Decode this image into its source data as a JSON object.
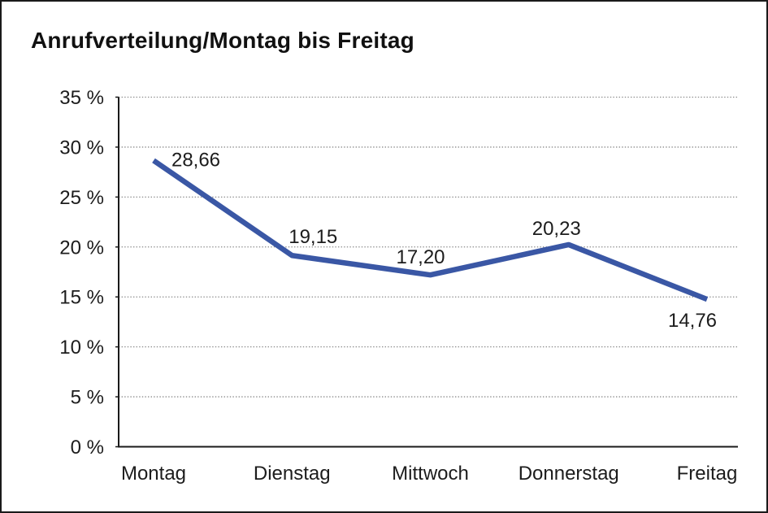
{
  "window": {
    "background": "#ffffff",
    "border_color": "#1a1a1a"
  },
  "title": "Anrufverteilung/Montag bis Freitag",
  "chart_data": {
    "type": "line",
    "title": "Anrufverteilung/Montag bis Freitag",
    "categories": [
      "Montag",
      "Dienstag",
      "Mittwoch",
      "Donnerstag",
      "Freitag"
    ],
    "values": [
      28.66,
      19.15,
      17.2,
      20.23,
      14.76
    ],
    "point_labels": [
      "28,66",
      "19,15",
      "17,20",
      "20,23",
      "14,76"
    ],
    "xlabel": "",
    "ylabel": "",
    "ylim": [
      0,
      35
    ],
    "y_ticks": [
      0,
      5,
      10,
      15,
      20,
      25,
      30,
      35
    ],
    "y_tick_labels": [
      "0 %",
      "5 %",
      "10 %",
      "15 %",
      "20 %",
      "25 %",
      "30 %",
      "35 %"
    ],
    "grid": "horizontal-dotted",
    "legend": "none",
    "line_color": "#3A57A5",
    "line_width": 6.5,
    "axis_color": "#1a1a1a",
    "grid_color": "#8a8a8a",
    "text_color": "#1c1c1c"
  }
}
